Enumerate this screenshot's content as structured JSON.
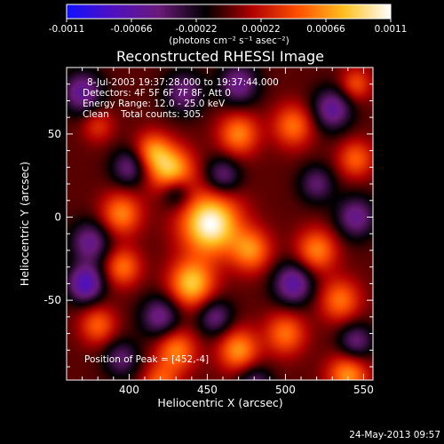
{
  "chart_data": {
    "type": "heatmap",
    "title": "Reconstructed RHESSI Image",
    "xlabel": "Heliocentric X (arcsec)",
    "ylabel": "Heliocentric Y (arcsec)",
    "xlim": [
      360,
      556
    ],
    "ylim": [
      -98,
      90
    ],
    "xticks": [
      400,
      450,
      500,
      550
    ],
    "yticks": [
      -50,
      0,
      50
    ],
    "colorbar": {
      "range": [
        -0.0011,
        0.0011
      ],
      "ticks": [
        "-0.0011",
        "-0.00066",
        "-0.00022",
        "0.00022",
        "0.00066",
        "0.0011"
      ],
      "label": "(photons cm⁻² s⁻¹ asec⁻²)",
      "colors": [
        "#1010ff",
        "#5010c0",
        "#6a1a78",
        "#000000",
        "#b00000",
        "#ff5000",
        "#ffc020",
        "#ffffff"
      ]
    },
    "annotations": [
      "8-Jul-2003 19:37:28.000 to 19:37:44.000",
      "Detectors: 4F 5F 6F 7F 8F, Att 0",
      "Energy Range: 12.0 - 25.0 keV",
      "Clean    Total counts: 305."
    ],
    "peak_label": "Position of Peak = [452,-4]",
    "peak": [
      452,
      -4
    ],
    "sources": [
      {
        "x": 452,
        "y": -4,
        "amp": 1.0,
        "w": 13
      },
      {
        "x": 427,
        "y": 28,
        "amp": 0.75,
        "w": 10
      },
      {
        "x": 470,
        "y": 50,
        "amp": 0.55,
        "w": 9
      },
      {
        "x": 505,
        "y": 55,
        "amp": 0.5,
        "w": 9
      },
      {
        "x": 395,
        "y": 2,
        "amp": 0.55,
        "w": 9
      },
      {
        "x": 415,
        "y": 40,
        "amp": 0.5,
        "w": 8
      },
      {
        "x": 396,
        "y": -30,
        "amp": 0.5,
        "w": 8
      },
      {
        "x": 440,
        "y": -40,
        "amp": 0.75,
        "w": 10
      },
      {
        "x": 478,
        "y": -20,
        "amp": 0.55,
        "w": 9
      },
      {
        "x": 520,
        "y": -20,
        "amp": 0.55,
        "w": 9
      },
      {
        "x": 545,
        "y": 35,
        "amp": 0.45,
        "w": 8
      },
      {
        "x": 535,
        "y": -50,
        "amp": 0.5,
        "w": 9
      },
      {
        "x": 500,
        "y": -70,
        "amp": 0.5,
        "w": 9
      },
      {
        "x": 470,
        "y": -80,
        "amp": 0.6,
        "w": 9
      },
      {
        "x": 430,
        "y": -80,
        "amp": 0.55,
        "w": 9
      },
      {
        "x": 420,
        "y": -100,
        "amp": 0.45,
        "w": 8
      },
      {
        "x": 540,
        "y": -95,
        "amp": 0.6,
        "w": 9
      },
      {
        "x": 380,
        "y": 55,
        "amp": 0.3,
        "w": 7
      },
      {
        "x": 545,
        "y": 80,
        "amp": 0.4,
        "w": 7
      },
      {
        "x": 380,
        "y": -65,
        "amp": 0.45,
        "w": 8
      },
      {
        "x": 370,
        "y": 75,
        "amp": -0.55,
        "w": 9
      },
      {
        "x": 435,
        "y": 75,
        "amp": -0.45,
        "w": 9
      },
      {
        "x": 470,
        "y": 80,
        "amp": -0.5,
        "w": 9
      },
      {
        "x": 460,
        "y": 25,
        "amp": -0.45,
        "w": 8
      },
      {
        "x": 530,
        "y": 65,
        "amp": -0.55,
        "w": 9
      },
      {
        "x": 545,
        "y": 0,
        "amp": -0.5,
        "w": 9
      },
      {
        "x": 400,
        "y": 30,
        "amp": -0.45,
        "w": 8
      },
      {
        "x": 430,
        "y": 15,
        "amp": -0.45,
        "w": 7
      },
      {
        "x": 375,
        "y": -15,
        "amp": -0.5,
        "w": 9
      },
      {
        "x": 372,
        "y": -40,
        "amp": -0.7,
        "w": 8
      },
      {
        "x": 420,
        "y": -60,
        "amp": -0.5,
        "w": 9
      },
      {
        "x": 455,
        "y": -60,
        "amp": -0.45,
        "w": 8
      },
      {
        "x": 505,
        "y": -40,
        "amp": -0.6,
        "w": 9
      },
      {
        "x": 520,
        "y": 20,
        "amp": -0.4,
        "w": 8
      },
      {
        "x": 395,
        "y": -85,
        "amp": -0.4,
        "w": 8
      },
      {
        "x": 480,
        "y": -100,
        "amp": -0.4,
        "w": 8
      },
      {
        "x": 545,
        "y": -75,
        "amp": -0.45,
        "w": 8
      }
    ]
  },
  "footer": {
    "timestamp": "24-May-2013 09:57"
  }
}
